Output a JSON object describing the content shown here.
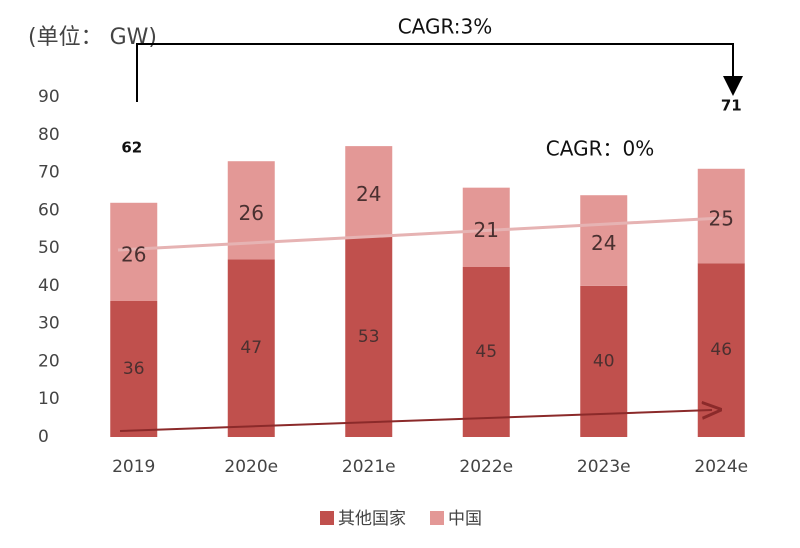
{
  "chart_data": {
    "type": "stacked-bar",
    "unit_label": "(单位： GW)",
    "categories": [
      "2019",
      "2020e",
      "2021e",
      "2022e",
      "2023e",
      "2024e"
    ],
    "series": [
      {
        "name": "其他国家",
        "color": "#c0504d",
        "values": [
          36,
          47,
          53,
          45,
          40,
          46
        ]
      },
      {
        "name": "中国",
        "color": "#e39896",
        "values": [
          26,
          26,
          24,
          21,
          24,
          25
        ]
      }
    ],
    "total_labels": [
      62,
      null,
      null,
      null,
      null,
      71
    ],
    "annotations": [
      "CAGR:3%",
      "CAGR：0%"
    ],
    "ylim": [
      0,
      90
    ],
    "yticks": [
      0,
      10,
      20,
      30,
      40,
      50,
      60,
      70,
      80,
      90
    ],
    "grid": false,
    "legend": "bottom"
  }
}
